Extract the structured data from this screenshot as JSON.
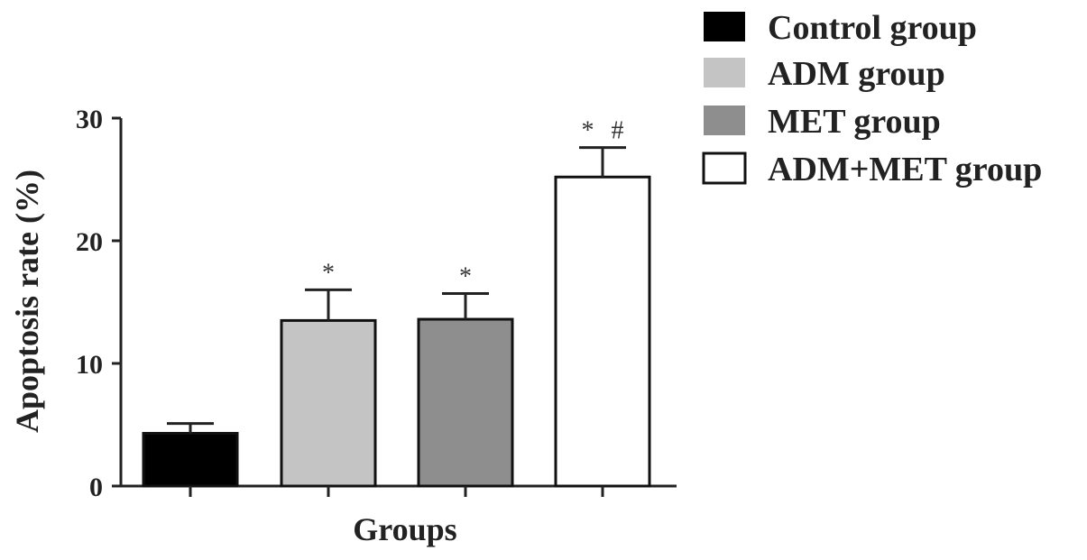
{
  "chart_data": {
    "type": "bar",
    "categories": [
      "Control group",
      "ADM group",
      "MET group",
      "ADM+MET group"
    ],
    "values": [
      4.3,
      13.5,
      13.6,
      25.2
    ],
    "errors": [
      0.8,
      2.5,
      2.1,
      2.4
    ],
    "significance": [
      "",
      "*",
      "*",
      "* #"
    ],
    "colors": [
      "#000000",
      "#c4c4c4",
      "#8e8e8e",
      "#ffffff"
    ],
    "xlabel": "Groups",
    "ylabel": "Apoptosis rate (%)",
    "ylim": [
      0,
      30
    ],
    "yticks": [
      "0",
      "10",
      "20",
      "30"
    ],
    "legend_position": "top-right",
    "grid": false
  }
}
